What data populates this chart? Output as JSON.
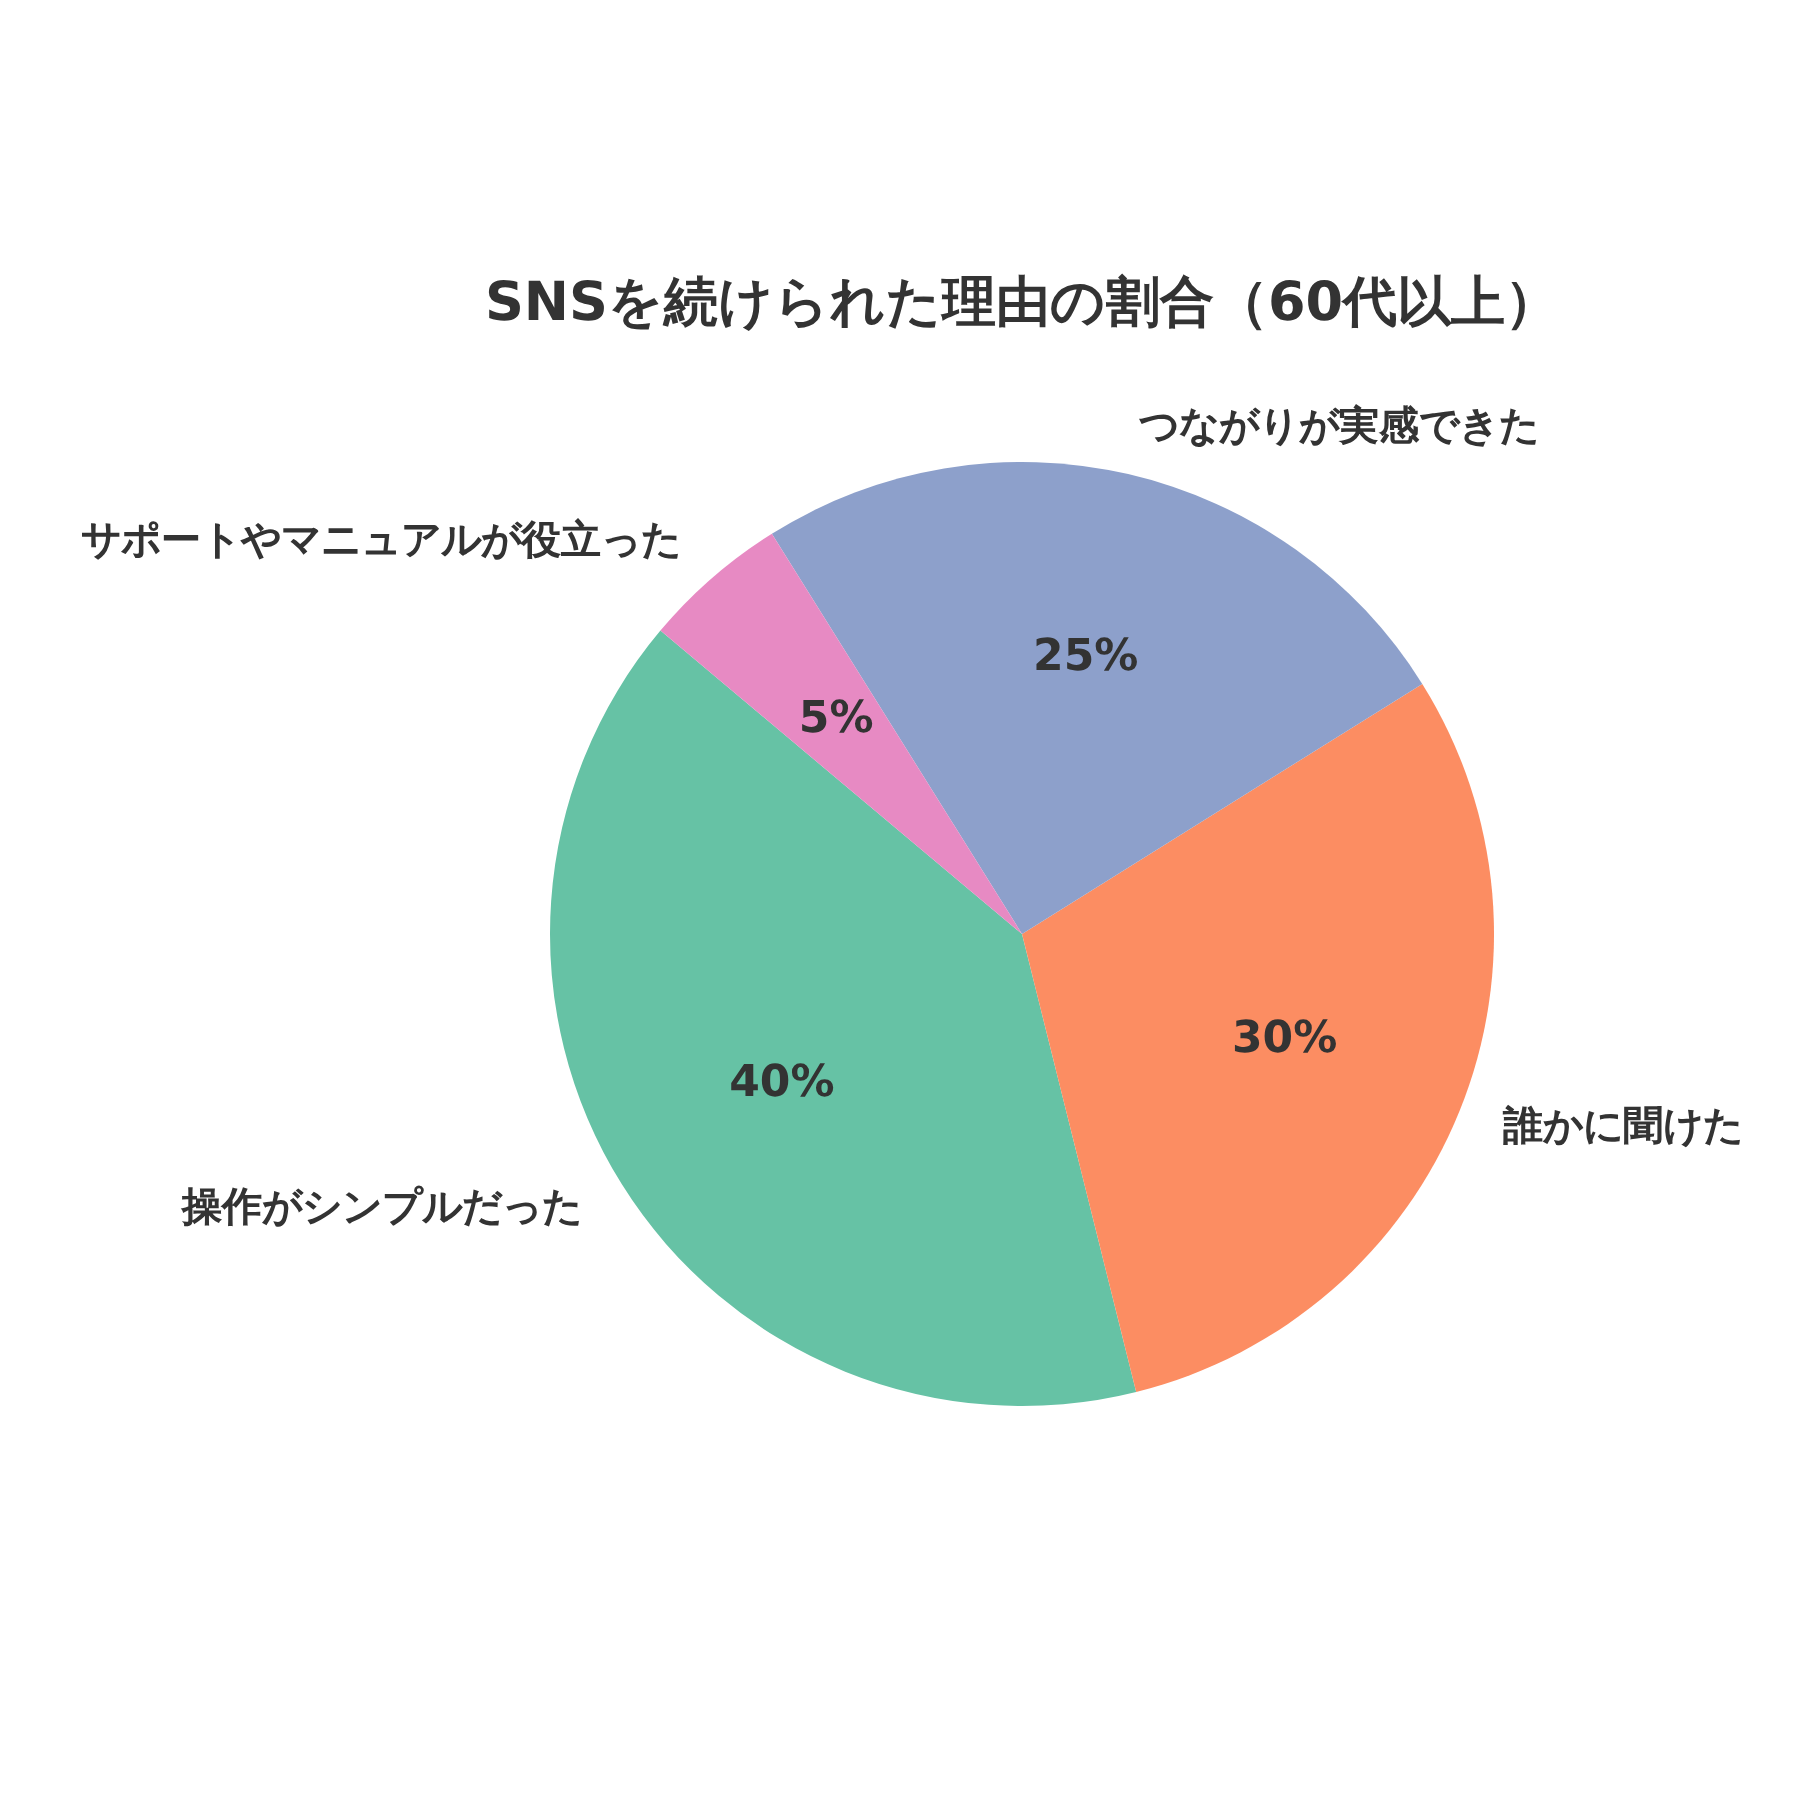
{
  "chart_data": {
    "type": "pie",
    "title": "SNSを続けられた理由の割合（60代以上）",
    "categories": [
      "操作がシンプルだった",
      "誰かに聞けた",
      "つながりが実感できた",
      "サポートやマニュアルが役立った"
    ],
    "values": [
      40,
      30,
      25,
      5
    ],
    "colors": [
      "#66c2a5",
      "#fc8d62",
      "#8da0cb",
      "#e78ac3"
    ],
    "value_labels": [
      "40%",
      "30%",
      "25%",
      "5%"
    ]
  }
}
